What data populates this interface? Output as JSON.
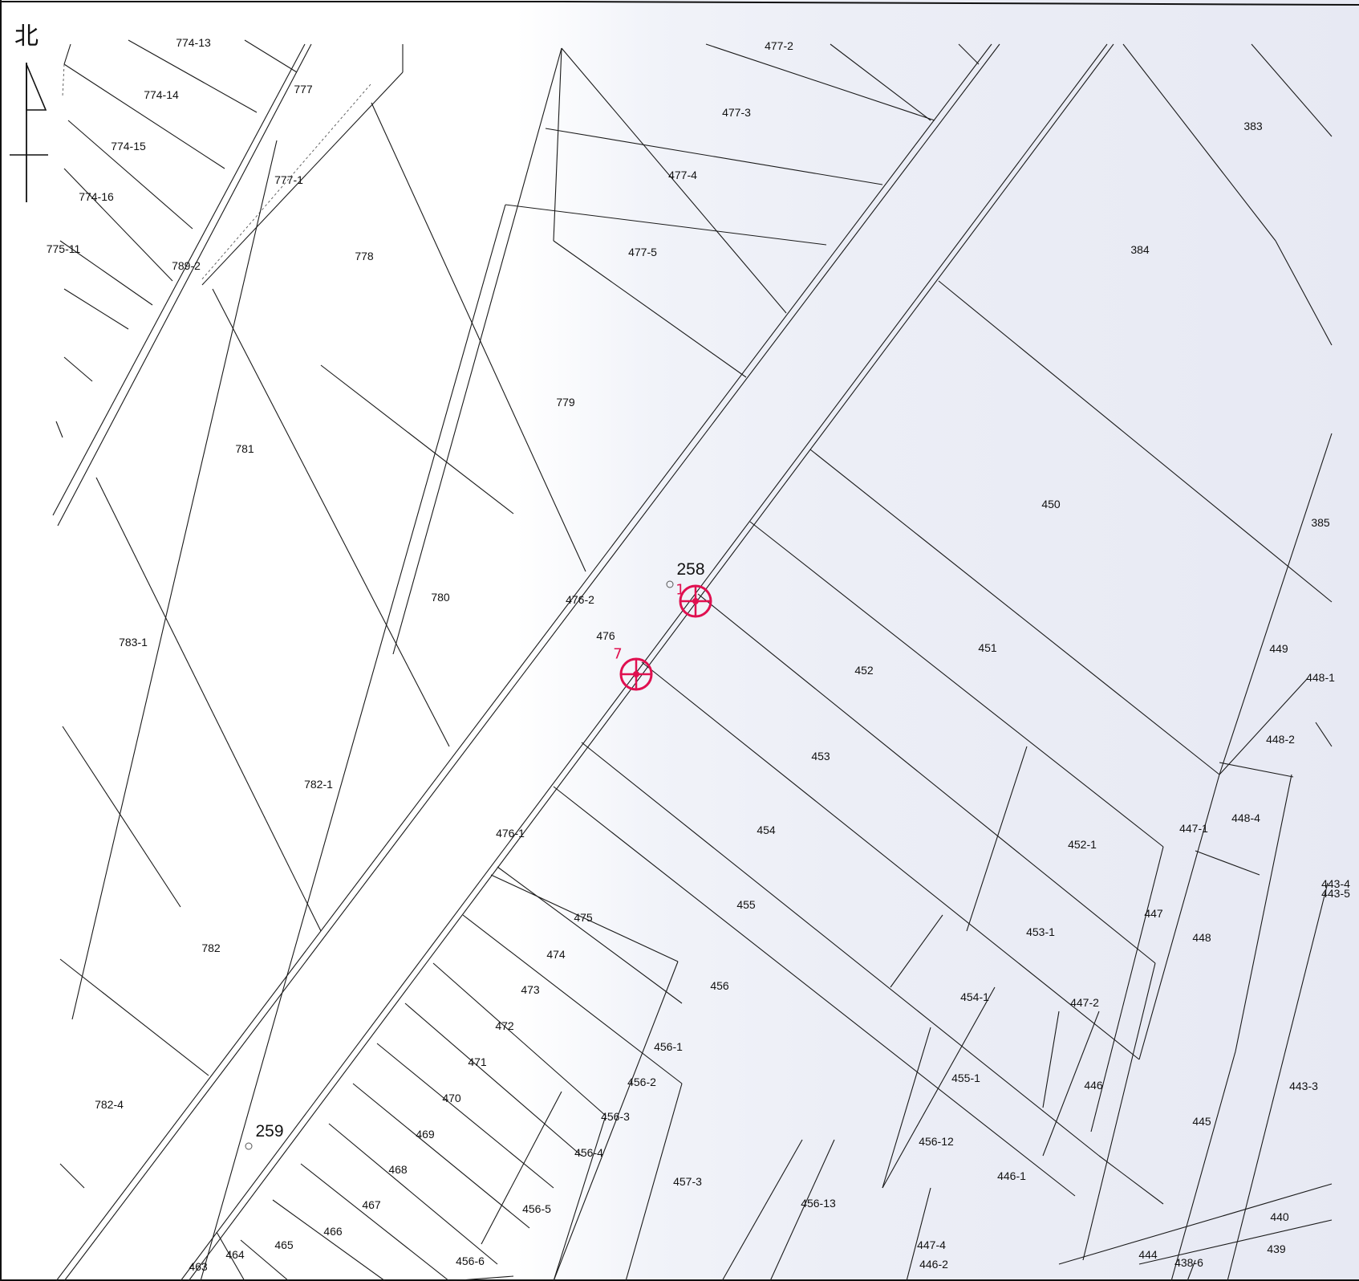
{
  "north_label": "北",
  "parcels": [
    {
      "id": "p-774-13",
      "label": "774-13"
    },
    {
      "id": "p-774-14",
      "label": "774-14"
    },
    {
      "id": "p-774-15",
      "label": "774-15"
    },
    {
      "id": "p-774-16",
      "label": "774-16"
    },
    {
      "id": "p-775-11",
      "label": "775-11"
    },
    {
      "id": "p-777",
      "label": "777"
    },
    {
      "id": "p-777-1",
      "label": "777-1"
    },
    {
      "id": "p-789-2",
      "label": "789-2"
    },
    {
      "id": "p-778",
      "label": "778"
    },
    {
      "id": "p-779",
      "label": "779"
    },
    {
      "id": "p-781",
      "label": "781"
    },
    {
      "id": "p-780",
      "label": "780"
    },
    {
      "id": "p-783-1",
      "label": "783-1"
    },
    {
      "id": "p-782-1",
      "label": "782-1"
    },
    {
      "id": "p-782",
      "label": "782"
    },
    {
      "id": "p-782-4",
      "label": "782-4"
    },
    {
      "id": "p-477-2",
      "label": "477-2"
    },
    {
      "id": "p-477-3",
      "label": "477-3"
    },
    {
      "id": "p-477-4",
      "label": "477-4"
    },
    {
      "id": "p-477-5",
      "label": "477-5"
    },
    {
      "id": "p-383",
      "label": "383"
    },
    {
      "id": "p-384",
      "label": "384"
    },
    {
      "id": "p-385",
      "label": "385"
    },
    {
      "id": "p-450",
      "label": "450"
    },
    {
      "id": "p-476-2",
      "label": "476-2"
    },
    {
      "id": "p-476",
      "label": "476"
    },
    {
      "id": "p-476-1",
      "label": "476-1"
    },
    {
      "id": "p-451",
      "label": "451"
    },
    {
      "id": "p-452",
      "label": "452"
    },
    {
      "id": "p-449",
      "label": "449"
    },
    {
      "id": "p-448-1",
      "label": "448-1"
    },
    {
      "id": "p-448-2",
      "label": "448-2"
    },
    {
      "id": "p-453",
      "label": "453"
    },
    {
      "id": "p-447-1",
      "label": "447-1"
    },
    {
      "id": "p-448-4",
      "label": "448-4"
    },
    {
      "id": "p-454",
      "label": "454"
    },
    {
      "id": "p-452-1",
      "label": "452-1"
    },
    {
      "id": "p-443-4",
      "label": "443-4"
    },
    {
      "id": "p-443-5",
      "label": "443-5"
    },
    {
      "id": "p-475",
      "label": "475"
    },
    {
      "id": "p-455",
      "label": "455"
    },
    {
      "id": "p-447",
      "label": "447"
    },
    {
      "id": "p-453-1",
      "label": "453-1"
    },
    {
      "id": "p-448",
      "label": "448"
    },
    {
      "id": "p-474",
      "label": "474"
    },
    {
      "id": "p-473",
      "label": "473"
    },
    {
      "id": "p-456",
      "label": "456"
    },
    {
      "id": "p-454-1",
      "label": "454-1"
    },
    {
      "id": "p-447-2",
      "label": "447-2"
    },
    {
      "id": "p-472",
      "label": "472"
    },
    {
      "id": "p-456-1",
      "label": "456-1"
    },
    {
      "id": "p-471",
      "label": "471"
    },
    {
      "id": "p-456-2",
      "label": "456-2"
    },
    {
      "id": "p-455-1",
      "label": "455-1"
    },
    {
      "id": "p-446",
      "label": "446"
    },
    {
      "id": "p-443-3",
      "label": "443-3"
    },
    {
      "id": "p-470",
      "label": "470"
    },
    {
      "id": "p-456-3",
      "label": "456-3"
    },
    {
      "id": "p-445",
      "label": "445"
    },
    {
      "id": "p-469",
      "label": "469"
    },
    {
      "id": "p-456-4",
      "label": "456-4"
    },
    {
      "id": "p-456-12",
      "label": "456-12"
    },
    {
      "id": "p-468",
      "label": "468"
    },
    {
      "id": "p-457-3",
      "label": "457-3"
    },
    {
      "id": "p-446-1",
      "label": "446-1"
    },
    {
      "id": "p-467",
      "label": "467"
    },
    {
      "id": "p-456-5",
      "label": "456-5"
    },
    {
      "id": "p-456-13",
      "label": "456-13"
    },
    {
      "id": "p-466",
      "label": "466"
    },
    {
      "id": "p-465",
      "label": "465"
    },
    {
      "id": "p-464",
      "label": "464"
    },
    {
      "id": "p-463",
      "label": "463"
    },
    {
      "id": "p-456-6",
      "label": "456-6"
    },
    {
      "id": "p-447-4",
      "label": "447-4"
    },
    {
      "id": "p-446-2",
      "label": "446-2"
    },
    {
      "id": "p-444",
      "label": "444"
    },
    {
      "id": "p-438-6",
      "label": "438-6"
    },
    {
      "id": "p-440",
      "label": "440"
    },
    {
      "id": "p-439",
      "label": "439"
    }
  ],
  "road_labels": [
    {
      "id": "road-258",
      "label": "258"
    },
    {
      "id": "road-259",
      "label": "259"
    }
  ],
  "stamps": [
    {
      "id": "stamp-1",
      "label": "1"
    },
    {
      "id": "stamp-7",
      "label": "7"
    }
  ],
  "colors": {
    "line": "#1a1a1a",
    "stamp": "#e01050"
  }
}
